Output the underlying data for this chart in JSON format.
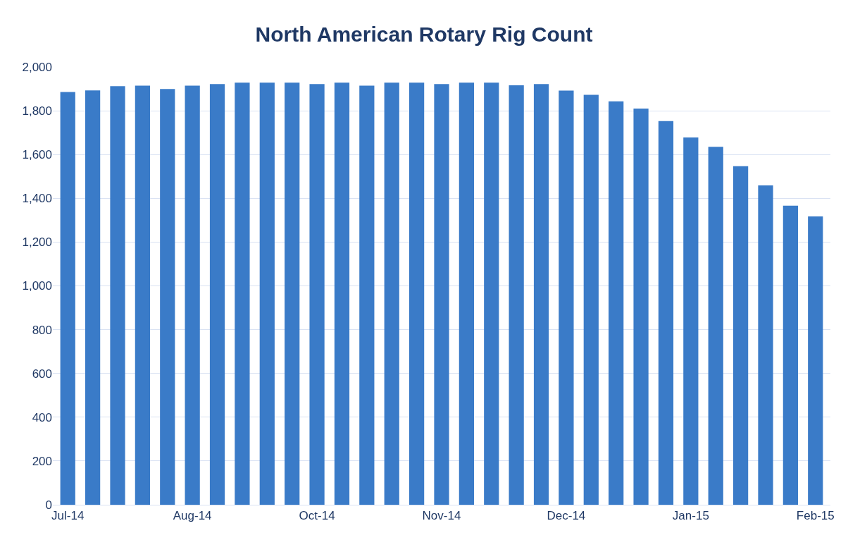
{
  "chart_data": {
    "type": "bar",
    "title": "North American Rotary Rig Count",
    "categories": [
      "Jul-14",
      null,
      null,
      null,
      null,
      "Aug-14",
      null,
      null,
      null,
      null,
      "Oct-14",
      null,
      null,
      null,
      null,
      "Nov-14",
      null,
      null,
      null,
      null,
      "Dec-14",
      null,
      null,
      null,
      null,
      "Jan-15",
      null,
      null,
      null,
      null,
      "Feb-15"
    ],
    "values": [
      1886,
      1893,
      1912,
      1915,
      1899,
      1915,
      1922,
      1928,
      1928,
      1928,
      1922,
      1928,
      1915,
      1928,
      1928,
      1922,
      1928,
      1928,
      1916,
      1922,
      1892,
      1873,
      1843,
      1810,
      1753,
      1678,
      1635,
      1547,
      1459,
      1366,
      1317
    ],
    "color": "#3a7bc8",
    "ylim": [
      0,
      2000
    ],
    "yticks": [
      {
        "value": 0,
        "label": "0"
      },
      {
        "value": 200,
        "label": "200"
      },
      {
        "value": 400,
        "label": "400"
      },
      {
        "value": 600,
        "label": "600"
      },
      {
        "value": 800,
        "label": "800"
      },
      {
        "value": 1000,
        "label": "1,000"
      },
      {
        "value": 1200,
        "label": "1,200"
      },
      {
        "value": 1400,
        "label": "1,400"
      },
      {
        "value": 1600,
        "label": "1,600"
      },
      {
        "value": 1800,
        "label": "1,800"
      },
      {
        "value": 2000,
        "label": "2,000"
      }
    ],
    "grid": "y",
    "legend": false
  }
}
